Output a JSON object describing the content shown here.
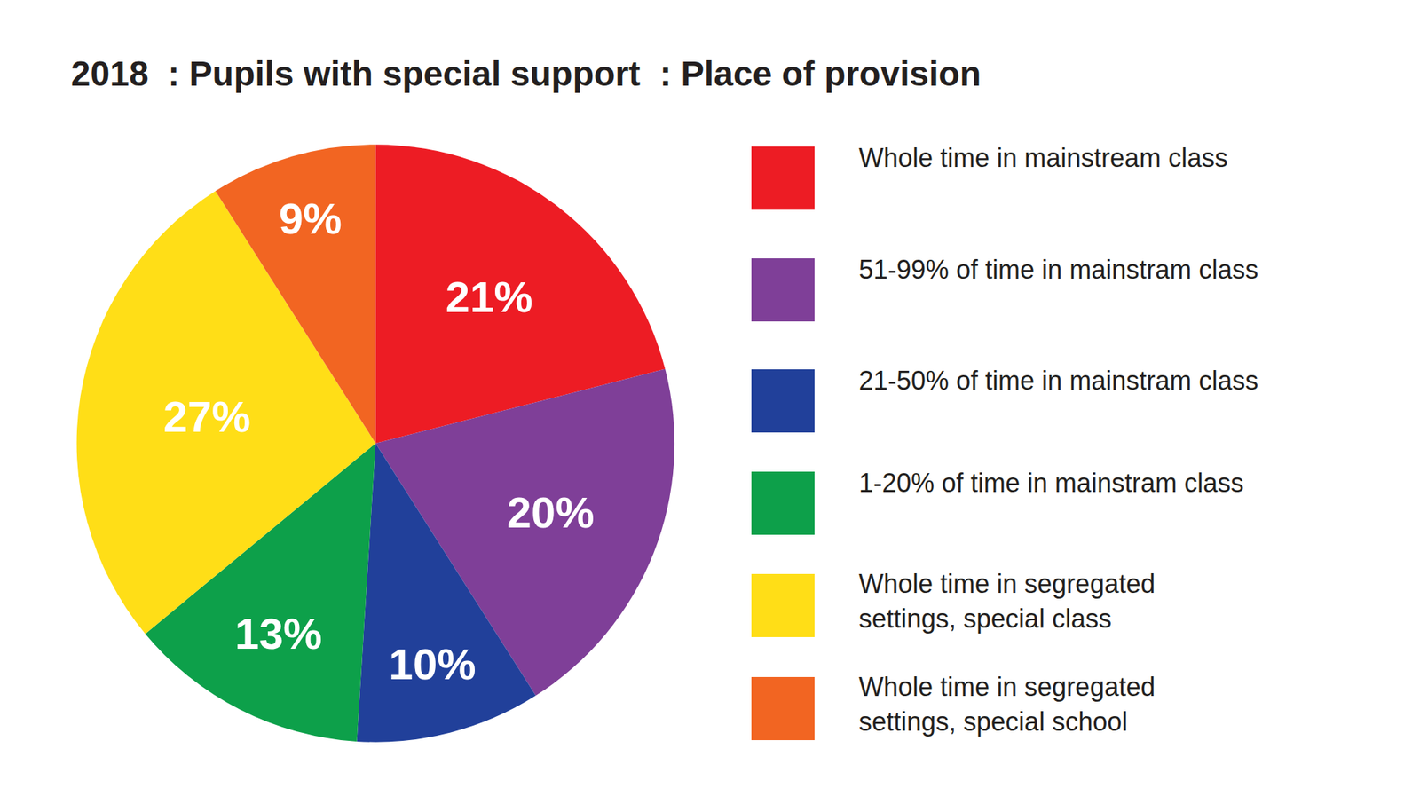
{
  "chart_data": {
    "type": "pie",
    "title": "2018  : Pupils with special support  : Place of provision",
    "categories": [
      "Whole time in mainstream class",
      "51-99% of time in mainstram class",
      "21-50% of time in mainstram class",
      "1-20% of time in mainstram class",
      "Whole time in segregated settings, special class",
      "Whole time in segregated settings, special school"
    ],
    "values": [
      21,
      20,
      10,
      13,
      27,
      9
    ],
    "value_labels": [
      "21%",
      "20%",
      "10%",
      "13%",
      "27%",
      "9%"
    ],
    "colors": [
      "#ed1c24",
      "#7f3f98",
      "#21409a",
      "#0da04a",
      "#ffde17",
      "#f26522"
    ],
    "data_labels": true,
    "legend": "right"
  }
}
